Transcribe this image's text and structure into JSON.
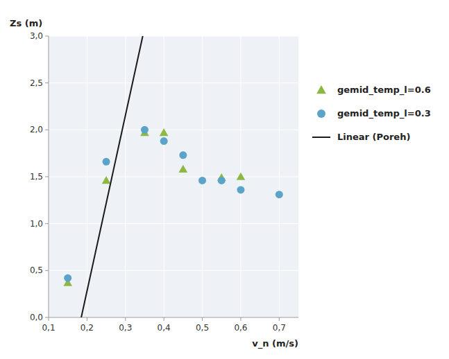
{
  "chart_data": {
    "type": "scatter",
    "xlabel": "v_n (m/s)",
    "ylabel": "Zs (m)",
    "xlim": [
      0.1,
      0.75
    ],
    "ylim": [
      0.0,
      3.0
    ],
    "xticks": [
      {
        "value": 0.1,
        "label": "0,1"
      },
      {
        "value": 0.2,
        "label": "0,2"
      },
      {
        "value": 0.3,
        "label": "0,3"
      },
      {
        "value": 0.4,
        "label": "0,4"
      },
      {
        "value": 0.5,
        "label": "0,5"
      },
      {
        "value": 0.6,
        "label": "0,6"
      },
      {
        "value": 0.7,
        "label": "0,7"
      }
    ],
    "yticks": [
      {
        "value": 0.0,
        "label": "0,0"
      },
      {
        "value": 0.5,
        "label": "0,5"
      },
      {
        "value": 1.0,
        "label": "1,0"
      },
      {
        "value": 1.5,
        "label": "1,5"
      },
      {
        "value": 2.0,
        "label": "2,0"
      },
      {
        "value": 2.5,
        "label": "2,5"
      },
      {
        "value": 3.0,
        "label": "3,0"
      }
    ],
    "grid": true,
    "legend": "right",
    "series": [
      {
        "name": "gemid_temp_l=0.6",
        "color": "#8db843",
        "marker": "triangle",
        "x": [
          0.15,
          0.25,
          0.35,
          0.4,
          0.45,
          0.55,
          0.6
        ],
        "values": [
          0.37,
          1.46,
          1.97,
          1.97,
          1.58,
          1.49,
          1.5
        ]
      },
      {
        "name": "gemid_temp_l=0.3",
        "color": "#5ba3c9",
        "marker": "circle",
        "x": [
          0.15,
          0.25,
          0.35,
          0.4,
          0.45,
          0.5,
          0.55,
          0.6,
          0.7
        ],
        "values": [
          0.42,
          1.66,
          2.0,
          1.88,
          1.73,
          1.46,
          1.46,
          1.36,
          1.31
        ]
      },
      {
        "name": "Linear (Poreh)",
        "type": "line",
        "color": "#1a1a1a",
        "line_style": "solid",
        "x": [
          0.185,
          0.345
        ],
        "values": [
          0.0,
          3.0
        ]
      }
    ]
  }
}
